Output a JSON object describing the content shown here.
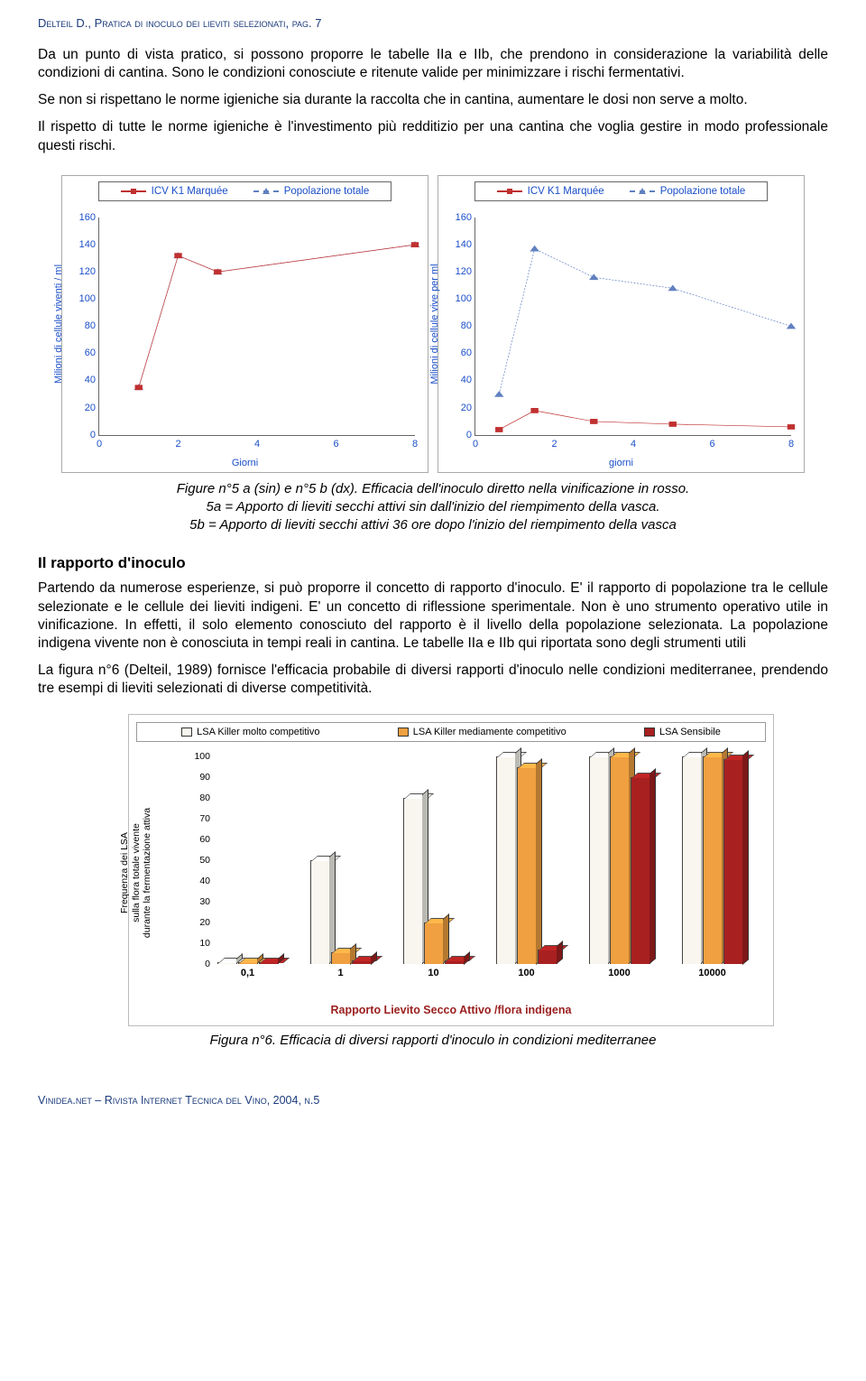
{
  "header": "Delteil D., Pratica di inoculo dei lieviti selezionati, pag. 7",
  "paragraphs": {
    "p1": "Da un punto di vista pratico, si possono proporre le tabelle IIa e IIb, che prendono in considerazione la variabilità delle condizioni di cantina. Sono le condizioni conosciute e ritenute valide per minimizzare i rischi fermentativi.",
    "p2": "Se non si rispettano le norme igieniche sia durante la raccolta che in cantina, aumentare le dosi non serve a molto.",
    "p3": "Il rispetto di tutte le norme igieniche è l'investimento più redditizio per una cantina che voglia gestire in modo professionale questi rischi.",
    "p4": "Partendo da numerose esperienze, si può proporre il concetto di rapporto d'inoculo. E' il rapporto di popolazione tra le cellule selezionate e le cellule dei lieviti indigeni. E' un concetto di riflessione sperimentale. Non è uno strumento operativo utile in vinificazione. In effetti, il solo elemento conosciuto del rapporto è il livello della popolazione selezionata. La popolazione indigena vivente non è conosciuta in tempi reali in cantina. Le tabelle IIa e IIb qui riportata sono degli strumenti utili",
    "p5": "La figura n°6 (Delteil, 1989) fornisce l'efficacia probabile di diversi rapporti d'inoculo nelle condizioni mediterranee, prendendo tre esempi di lieviti selezionati di diverse competitività."
  },
  "section_heading": "Il rapporto d'inoculo",
  "line_charts": {
    "legend_series_a": "ICV K1 Marquée",
    "legend_series_b": "Popolazione totale",
    "ylabel_a": "Milioni di cellule viventi / ml",
    "ylabel_b": "Milioni di cellule vive per ml",
    "xlabel_a": "Giorni",
    "xlabel_b": "giorni",
    "yticks": [
      0,
      20,
      40,
      60,
      80,
      100,
      120,
      140,
      160
    ],
    "xticks": [
      0,
      2,
      4,
      6,
      8
    ],
    "ylim": [
      0,
      160
    ],
    "xlim": [
      0,
      8
    ],
    "chart_a": {
      "series_a_color": "#c03030",
      "series_a_marker": "square",
      "series_b_color": "#6080c0",
      "series_b_marker": "triangle",
      "series_a": [
        [
          1,
          35
        ],
        [
          2,
          132
        ],
        [
          3,
          120
        ],
        [
          8,
          140
        ]
      ],
      "series_b": [
        [
          1,
          35
        ],
        [
          2,
          132
        ],
        [
          3,
          120
        ],
        [
          8,
          140
        ]
      ]
    },
    "chart_b": {
      "series_a_color": "#c03030",
      "series_b_color": "#6080c0",
      "series_a": [
        [
          0.6,
          4
        ],
        [
          1.5,
          18
        ],
        [
          3,
          10
        ],
        [
          5,
          8
        ],
        [
          8,
          6
        ]
      ],
      "series_b": [
        [
          0.6,
          30
        ],
        [
          1.5,
          137
        ],
        [
          3,
          116
        ],
        [
          5,
          108
        ],
        [
          8,
          80
        ]
      ]
    }
  },
  "fig5_caption": {
    "l1": "Figure n°5 a (sin) e n°5 b (dx). Efficacia dell'inoculo diretto nella vinificazione in rosso.",
    "l2": "5a = Apporto di lieviti secchi attivi sin dall'inizio del riempimento della vasca.",
    "l3": "5b = Apporto di lieviti secchi attivi 36 ore dopo l'inizio del riempimento della vasca"
  },
  "bar_chart": {
    "legend": {
      "s1_label": "LSA Killer molto competitivo",
      "s1_color": "#f8f6ee",
      "s2_label": "LSA Killer mediamente competitivo",
      "s2_color": "#f0a040",
      "s3_label": "LSA Sensibile",
      "s3_color": "#a82020"
    },
    "ylabel": "Frequenza dei LSA\nsulla flora totale vivente\ndurante la fermentazione attiva",
    "xlabel": "Rapporto Lievito Secco Attivo /flora indigena",
    "ylim": [
      0,
      100
    ],
    "ytick_step": 10,
    "yticks": [
      0,
      10,
      20,
      30,
      40,
      50,
      60,
      70,
      80,
      90,
      100
    ],
    "categories": [
      "0,1",
      "1",
      "10",
      "100",
      "1000",
      "10000"
    ],
    "values_s1": [
      1,
      50,
      80,
      100,
      100,
      100
    ],
    "values_s2": [
      1,
      6,
      20,
      95,
      100,
      100
    ],
    "values_s3": [
      1,
      2,
      2,
      7,
      90,
      99
    ]
  },
  "fig6_caption": "Figura n°6. Efficacia di diversi rapporti d'inoculo in condizioni mediterranee",
  "footer": "Vinidea.net – Rivista Internet Tecnica del Vino, 2004, n.5"
}
